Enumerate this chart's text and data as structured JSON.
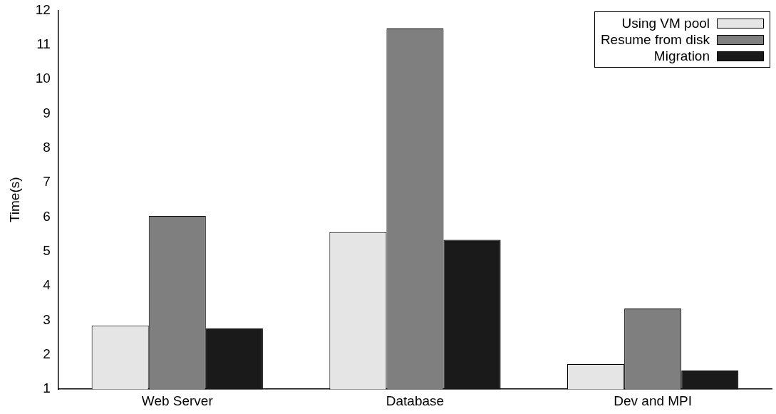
{
  "chart_data": {
    "type": "bar",
    "ylabel": "Time(s)",
    "categories": [
      "Web Server",
      "Database",
      "Dev and MPI"
    ],
    "series": [
      {
        "name": "Using VM pool",
        "color": "#e5e5e5",
        "values": [
          2.85,
          5.56,
          1.73
        ]
      },
      {
        "name": "Resume from disk",
        "color": "#7f7f7f",
        "values": [
          6.03,
          11.47,
          3.34
        ]
      },
      {
        "name": "Migration",
        "color": "#1a1a1a",
        "values": [
          2.76,
          5.34,
          1.54
        ]
      }
    ],
    "ylim": [
      1,
      12
    ],
    "yticks": [
      1,
      2,
      3,
      4,
      5,
      6,
      7,
      8,
      9,
      10,
      11,
      12
    ],
    "grid": false,
    "legend": "top right"
  }
}
